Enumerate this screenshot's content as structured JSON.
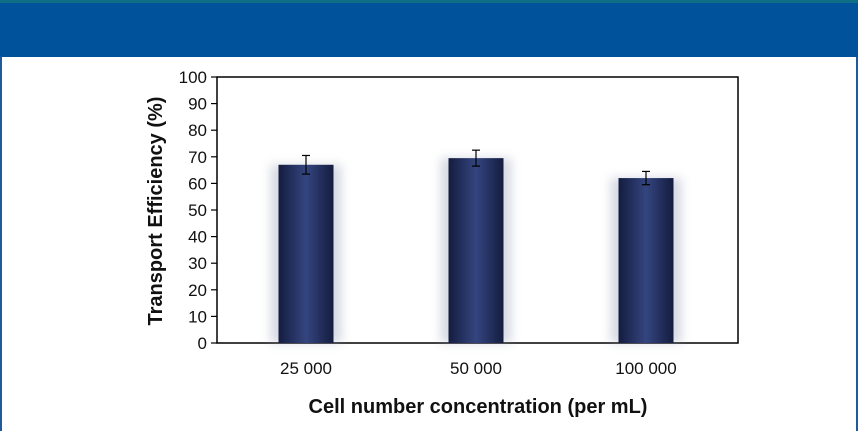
{
  "colors": {
    "banner": "#00529b",
    "bar_dark": "#1b2550",
    "bar_mid": "#2e3f78",
    "frame": "#1f5a9c"
  },
  "chart_data": {
    "type": "bar",
    "categories": [
      "25 000",
      "50 000",
      "100 000"
    ],
    "values": [
      67,
      69.5,
      62
    ],
    "errors": [
      3.5,
      3,
      2.5
    ],
    "xlabel": "Cell number concentration (per mL)",
    "ylabel": "Transport Efficiency (%)",
    "ylim": [
      0,
      100
    ],
    "yticks": [
      "0",
      "10",
      "20",
      "30",
      "40",
      "50",
      "60",
      "70",
      "80",
      "90",
      "100"
    ],
    "grid": false,
    "legend": "none"
  }
}
